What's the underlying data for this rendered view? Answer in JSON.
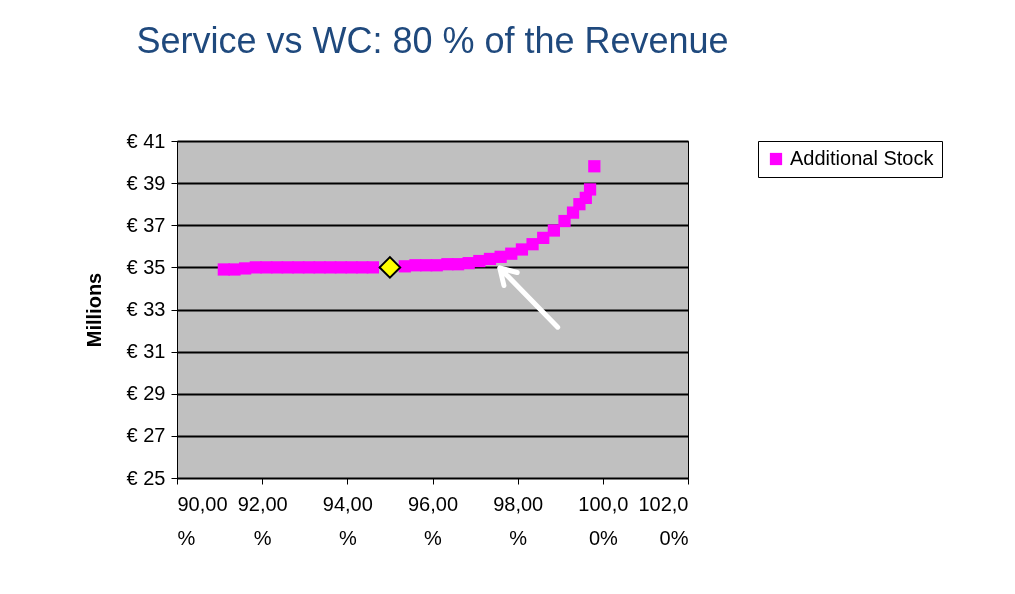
{
  "chart_data": {
    "type": "scatter",
    "title": "Service vs WC: 80 % of the Revenue",
    "ylabel": "Millions",
    "series": [
      {
        "name": "Additional Stock",
        "color": "#ff00ff",
        "marker": "square",
        "x": [
          91.1,
          91.35,
          91.6,
          91.85,
          92.1,
          92.35,
          92.6,
          92.85,
          93.1,
          93.35,
          93.6,
          93.85,
          94.1,
          94.35,
          94.6,
          94.85,
          95.1,
          95.35,
          95.6,
          95.85,
          96.1,
          96.35,
          96.6,
          96.85,
          97.1,
          97.35,
          97.6,
          97.85,
          98.1,
          98.35,
          98.6,
          98.85,
          99.1,
          99.3,
          99.45,
          99.6,
          99.7,
          99.8
        ],
        "values": [
          34.9,
          34.9,
          34.95,
          35,
          35,
          35,
          35,
          35,
          35,
          35,
          35,
          35,
          35,
          35,
          35,
          null,
          null,
          35.05,
          35.1,
          35.1,
          35.1,
          35.15,
          35.15,
          35.2,
          35.3,
          35.4,
          35.5,
          35.65,
          35.85,
          36.1,
          36.4,
          36.75,
          37.2,
          37.6,
          38.0,
          38.3,
          38.7,
          39.8
        ]
      },
      {
        "color": "#ffff00",
        "marker": "diamond",
        "x": [
          95
        ],
        "values": [
          35
        ]
      }
    ],
    "xlim": [
      90,
      102
    ],
    "xticks": [
      {
        "value": 90,
        "label": "90,00%"
      },
      {
        "value": 92,
        "label": "92,00%"
      },
      {
        "value": 94,
        "label": "94,00%"
      },
      {
        "value": 96,
        "label": "96,00%"
      },
      {
        "value": 98,
        "label": "98,00%"
      },
      {
        "value": 100,
        "label": "100,00%"
      },
      {
        "value": 102,
        "label": "102,00%"
      }
    ],
    "ylim": [
      25,
      41
    ],
    "yticks": [
      {
        "value": 25,
        "label": "€ 25"
      },
      {
        "value": 27,
        "label": "€ 27"
      },
      {
        "value": 29,
        "label": "€ 29"
      },
      {
        "value": 31,
        "label": "€ 31"
      },
      {
        "value": 33,
        "label": "€ 33"
      },
      {
        "value": 35,
        "label": "€ 35"
      },
      {
        "value": 37,
        "label": "€ 37"
      },
      {
        "value": 39,
        "label": "€ 39"
      },
      {
        "value": 41,
        "label": "€ 41"
      }
    ],
    "grid": "y",
    "legend": "right"
  }
}
